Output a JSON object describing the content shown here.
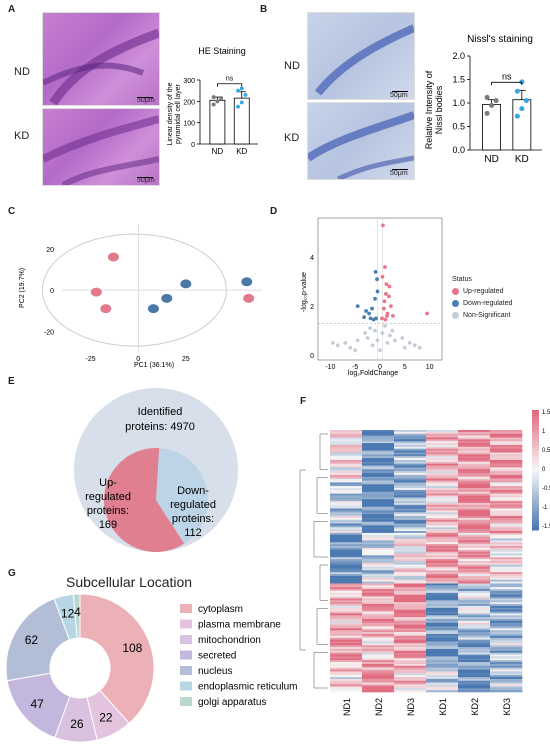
{
  "panels": {
    "A": {
      "letter": "A",
      "row_labels": [
        "ND",
        "KD"
      ],
      "scale": "50μm",
      "chart": {
        "title": "HE Staining",
        "ylabel_line1": "Linear density of the",
        "ylabel_line2": "pyramidal cell layer",
        "yticks": [
          "0",
          "100",
          "200",
          "300"
        ],
        "categories": [
          "ND",
          "KD"
        ],
        "sig": "ns"
      }
    },
    "B": {
      "letter": "B",
      "row_labels": [
        "ND",
        "KD"
      ],
      "scale": "50μm",
      "chart": {
        "title": "Nissl's staining",
        "ylabel_line1": "Relative Intensity of",
        "ylabel_line2": "Nissl bodies",
        "yticks": [
          "0.0",
          "0.5",
          "1.0",
          "1.5",
          "2.0"
        ],
        "categories": [
          "ND",
          "KD"
        ],
        "sig": "ns"
      }
    },
    "C": {
      "letter": "C",
      "xlabel": "PC1  (36.1%)",
      "ylabel": "PC2  (19.7%)",
      "xticks": [
        "-25",
        "0",
        "25"
      ],
      "yticks": [
        "20",
        "0",
        "-20"
      ]
    },
    "D": {
      "letter": "D",
      "xlabel": "log₂FoldChange",
      "ylabel": "-log₁₀p-value",
      "xticks": [
        "-10",
        "-5",
        "0",
        "5",
        "10"
      ],
      "yticks": [
        "0",
        "2",
        "4"
      ],
      "legend_title": "Status",
      "legend": [
        "Up-regulated",
        "Down-regulated",
        "Non-Significant"
      ]
    },
    "E": {
      "letter": "E",
      "identified_line1": "Identified",
      "identified_line2": "proteins: 4970",
      "up_line1": "Up-",
      "up_line2": "regulated",
      "up_line3": "proteins:",
      "up_line4": "169",
      "down_line1": "Down-",
      "down_line2": "regulated",
      "down_line3": "proteins:",
      "down_line4": "112"
    },
    "F": {
      "letter": "F",
      "columns": [
        "ND1",
        "ND2",
        "ND3",
        "KD1",
        "KD2",
        "KD3"
      ],
      "scale_ticks": [
        "1.5",
        "1",
        "0.5",
        "0",
        "-0.5",
        "-1",
        "-1.5"
      ]
    },
    "G": {
      "letter": "G",
      "title": "Subcellular Location"
    }
  },
  "chart_data": [
    {
      "type": "bar",
      "panel": "A",
      "title": "HE Staining",
      "ylabel": "Linear density of the pyramidal cell layer",
      "categories": [
        "ND",
        "KD"
      ],
      "values": [
        205,
        215
      ],
      "errors": [
        15,
        30
      ],
      "points": [
        [
          185,
          200,
          215,
          220
        ],
        [
          175,
          195,
          230,
          250,
          260
        ]
      ],
      "ylim": [
        0,
        300
      ],
      "significance": "ns"
    },
    {
      "type": "bar",
      "panel": "B",
      "title": "Nissl's staining",
      "ylabel": "Relative Intensity of Nissl bodies",
      "categories": [
        "ND",
        "KD"
      ],
      "values": [
        0.97,
        1.07
      ],
      "errors": [
        0.1,
        0.2
      ],
      "points": [
        [
          0.78,
          0.95,
          1.05,
          1.12
        ],
        [
          0.72,
          0.88,
          1.05,
          1.25,
          1.45
        ]
      ],
      "ylim": [
        0,
        2.0
      ],
      "significance": "ns"
    },
    {
      "type": "scatter",
      "panel": "C",
      "xlabel": "PC1 (36.1%)",
      "ylabel": "PC2 (19.7%)",
      "xlim": [
        -40,
        65
      ],
      "ylim": [
        -30,
        32
      ],
      "series": [
        {
          "name": "ND",
          "color": "#e17a8a",
          "x": [
            -13,
            -22,
            -17,
            58
          ],
          "y": [
            16,
            -1,
            -9,
            -4
          ]
        },
        {
          "name": "KD",
          "color": "#4a78a8",
          "x": [
            25,
            15,
            8,
            57
          ],
          "y": [
            3,
            -4,
            -9,
            4
          ]
        }
      ]
    },
    {
      "type": "scatter",
      "panel": "D",
      "xlabel": "log2FoldChange",
      "ylabel": "-log10p-value",
      "xlim": [
        -12.5,
        12.5
      ],
      "ylim": [
        -0.2,
        5.6
      ],
      "xticks": [
        -10,
        -5,
        0,
        5,
        10
      ],
      "yticks": [
        0,
        2,
        4
      ],
      "legend": [
        "Up-regulated",
        "Down-regulated",
        "Non-Significant"
      ],
      "series": [
        {
          "name": "Up-regulated",
          "color": "#e8748a",
          "x": [
            0.6,
            1.0,
            1.3,
            1.8,
            2.2,
            0.8,
            1.5,
            2.6,
            0.4,
            1.1,
            9.5,
            0.9,
            1.9,
            0.5,
            1.4,
            1.2
          ],
          "y": [
            5.3,
            3.6,
            2.9,
            2.4,
            2.0,
            1.9,
            1.7,
            1.6,
            1.5,
            1.45,
            1.7,
            2.2,
            2.8,
            3.2,
            1.6,
            2.5
          ]
        },
        {
          "name": "Down-regulated",
          "color": "#4a7fb5",
          "x": [
            -0.6,
            -1.0,
            -1.6,
            -2.2,
            -3.2,
            -4.5,
            -0.8,
            -1.3,
            -2.8,
            -0.5,
            -1.9,
            -0.9
          ],
          "y": [
            3.1,
            2.3,
            1.9,
            1.7,
            1.55,
            2.0,
            1.5,
            1.45,
            1.8,
            2.6,
            1.5,
            3.4
          ]
        },
        {
          "name": "Non-Significant",
          "color": "#c4ccd8",
          "x": [
            -8.5,
            -7,
            -6,
            -4.5,
            -3,
            -2,
            -1,
            0,
            1,
            2,
            3,
            4.5,
            6,
            7,
            -5,
            5,
            -0.5,
            0.5,
            -1.5,
            1.5,
            2.5,
            -2.5,
            8,
            -9.5
          ],
          "y": [
            0.4,
            0.5,
            0.3,
            0.6,
            0.9,
            1.1,
            1.0,
            0.2,
            1.2,
            0.8,
            0.6,
            0.7,
            0.5,
            0.4,
            0.2,
            0.3,
            0.6,
            0.9,
            0.4,
            0.5,
            1.0,
            0.7,
            0.3,
            0.5
          ]
        }
      ]
    },
    {
      "type": "pie",
      "panel": "E",
      "categories": [
        "Up-regulated proteins",
        "Down-regulated proteins"
      ],
      "values": [
        169,
        112
      ],
      "colors": [
        "#e07f90",
        "#bcd4e6"
      ],
      "total_identified": 4970
    },
    {
      "type": "heatmap",
      "panel": "F",
      "columns": [
        "ND1",
        "ND2",
        "ND3",
        "KD1",
        "KD2",
        "KD3"
      ],
      "color_range": [
        -1.5,
        1.5
      ],
      "colors": [
        "#4a78b0",
        "#f7f7f7",
        "#e06a7e"
      ]
    },
    {
      "type": "pie",
      "panel": "G",
      "title": "Subcellular Location",
      "categories": [
        "cytoplasm",
        "plasma membrane",
        "mitochondrion",
        "secreted",
        "nucleus",
        "endoplasmic reticulum",
        "golgi apparatus"
      ],
      "values": [
        108,
        22,
        26,
        47,
        62,
        12,
        4
      ],
      "colors": [
        "#ebb1b7",
        "#e4c3df",
        "#d8c2e0",
        "#c4b7de",
        "#b2bdd6",
        "#b6d6e4",
        "#b9d6cf"
      ],
      "donut": true
    }
  ]
}
